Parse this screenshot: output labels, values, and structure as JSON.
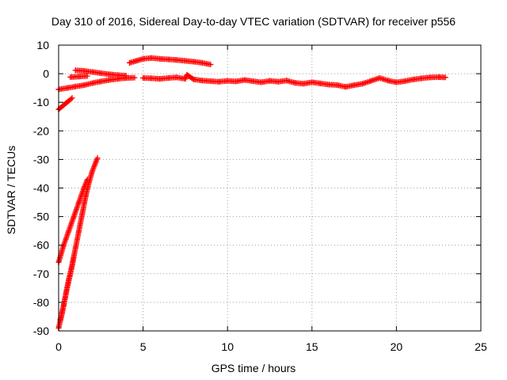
{
  "chart_data": {
    "type": "scatter",
    "title": "Day 310 of 2016, Sidereal Day-to-day VTEC variation (SDTVAR) for receiver p556",
    "xlabel": "GPS time / hours",
    "ylabel": "SDTVAR / TECUs",
    "xlim": [
      0,
      25
    ],
    "ylim": [
      -90,
      10
    ],
    "xticks": [
      "0",
      "5",
      "10",
      "15",
      "20",
      "25"
    ],
    "yticks": [
      "10",
      "0",
      "-10",
      "-20",
      "-30",
      "-40",
      "-50",
      "-60",
      "-70",
      "-80",
      "-90"
    ],
    "grid": true,
    "marker": "plus",
    "colors": {
      "series": "#ff0000"
    },
    "series": [
      {
        "values": [
          [
            0.0,
            -66
          ],
          [
            0.3,
            -60
          ],
          [
            0.6,
            -55
          ],
          [
            0.9,
            -50
          ],
          [
            1.2,
            -45
          ],
          [
            1.5,
            -40
          ],
          [
            1.7,
            -37
          ],
          [
            0.0,
            -89
          ],
          [
            0.2,
            -84
          ],
          [
            0.4,
            -78
          ],
          [
            0.6,
            -72
          ],
          [
            0.8,
            -67
          ],
          [
            1.0,
            -61
          ],
          [
            1.2,
            -55
          ],
          [
            1.4,
            -49
          ],
          [
            1.6,
            -43
          ],
          [
            1.8,
            -38
          ],
          [
            2.0,
            -34
          ],
          [
            2.2,
            -31
          ],
          [
            2.3,
            -29.5
          ],
          [
            0.1,
            -86
          ],
          [
            0.3,
            -81
          ],
          [
            0.5,
            -75
          ],
          [
            0.7,
            -70
          ],
          [
            0.9,
            -64
          ],
          [
            0.0,
            -12.5
          ],
          [
            0.3,
            -11
          ],
          [
            0.6,
            -9.5
          ],
          [
            0.8,
            -8.5
          ],
          [
            0.0,
            -5.5
          ],
          [
            0.5,
            -5.0
          ],
          [
            1.0,
            -4.5
          ],
          [
            1.5,
            -4.0
          ],
          [
            2.0,
            -3.3
          ],
          [
            2.5,
            -2.7
          ],
          [
            3.0,
            -2.2
          ],
          [
            3.5,
            -1.8
          ],
          [
            4.0,
            -1.5
          ],
          [
            4.5,
            -1.4
          ],
          [
            1.0,
            1.2
          ],
          [
            1.5,
            1.0
          ],
          [
            2.0,
            0.6
          ],
          [
            2.5,
            0.2
          ],
          [
            3.0,
            -0.2
          ],
          [
            3.5,
            -0.5
          ],
          [
            4.0,
            -0.7
          ],
          [
            0.7,
            -1.2
          ],
          [
            1.2,
            -1.0
          ],
          [
            1.7,
            -0.8
          ],
          [
            4.2,
            3.8
          ],
          [
            4.6,
            4.5
          ],
          [
            5.0,
            5.2
          ],
          [
            5.5,
            5.5
          ],
          [
            6.0,
            5.2
          ],
          [
            6.5,
            5.0
          ],
          [
            7.0,
            4.8
          ],
          [
            7.5,
            4.5
          ],
          [
            8.0,
            4.2
          ],
          [
            8.5,
            3.8
          ],
          [
            9.0,
            3.2
          ],
          [
            5.0,
            -1.5
          ],
          [
            5.5,
            -1.6
          ],
          [
            6.0,
            -1.8
          ],
          [
            6.5,
            -1.5
          ],
          [
            7.0,
            -1.3
          ],
          [
            7.5,
            -1.8
          ],
          [
            7.6,
            -0.4
          ],
          [
            8.0,
            -2.0
          ],
          [
            8.5,
            -2.4
          ],
          [
            9.0,
            -2.6
          ],
          [
            9.5,
            -2.8
          ],
          [
            10.0,
            -2.5
          ],
          [
            10.5,
            -2.7
          ],
          [
            11.0,
            -2.2
          ],
          [
            11.5,
            -2.6
          ],
          [
            12.0,
            -3.0
          ],
          [
            12.5,
            -2.5
          ],
          [
            13.0,
            -2.8
          ],
          [
            13.5,
            -2.4
          ],
          [
            14.0,
            -3.2
          ],
          [
            14.5,
            -3.5
          ],
          [
            15.0,
            -3.0
          ],
          [
            15.5,
            -3.4
          ],
          [
            16.0,
            -3.8
          ],
          [
            16.5,
            -4.0
          ],
          [
            17.0,
            -4.6
          ],
          [
            17.5,
            -4.0
          ],
          [
            18.0,
            -3.5
          ],
          [
            18.5,
            -2.5
          ],
          [
            19.0,
            -1.5
          ],
          [
            19.5,
            -2.4
          ],
          [
            20.0,
            -3.0
          ],
          [
            20.5,
            -2.6
          ],
          [
            21.0,
            -2.0
          ],
          [
            21.5,
            -1.6
          ],
          [
            22.0,
            -1.3
          ],
          [
            22.5,
            -1.2
          ],
          [
            22.9,
            -1.3
          ]
        ]
      }
    ]
  }
}
